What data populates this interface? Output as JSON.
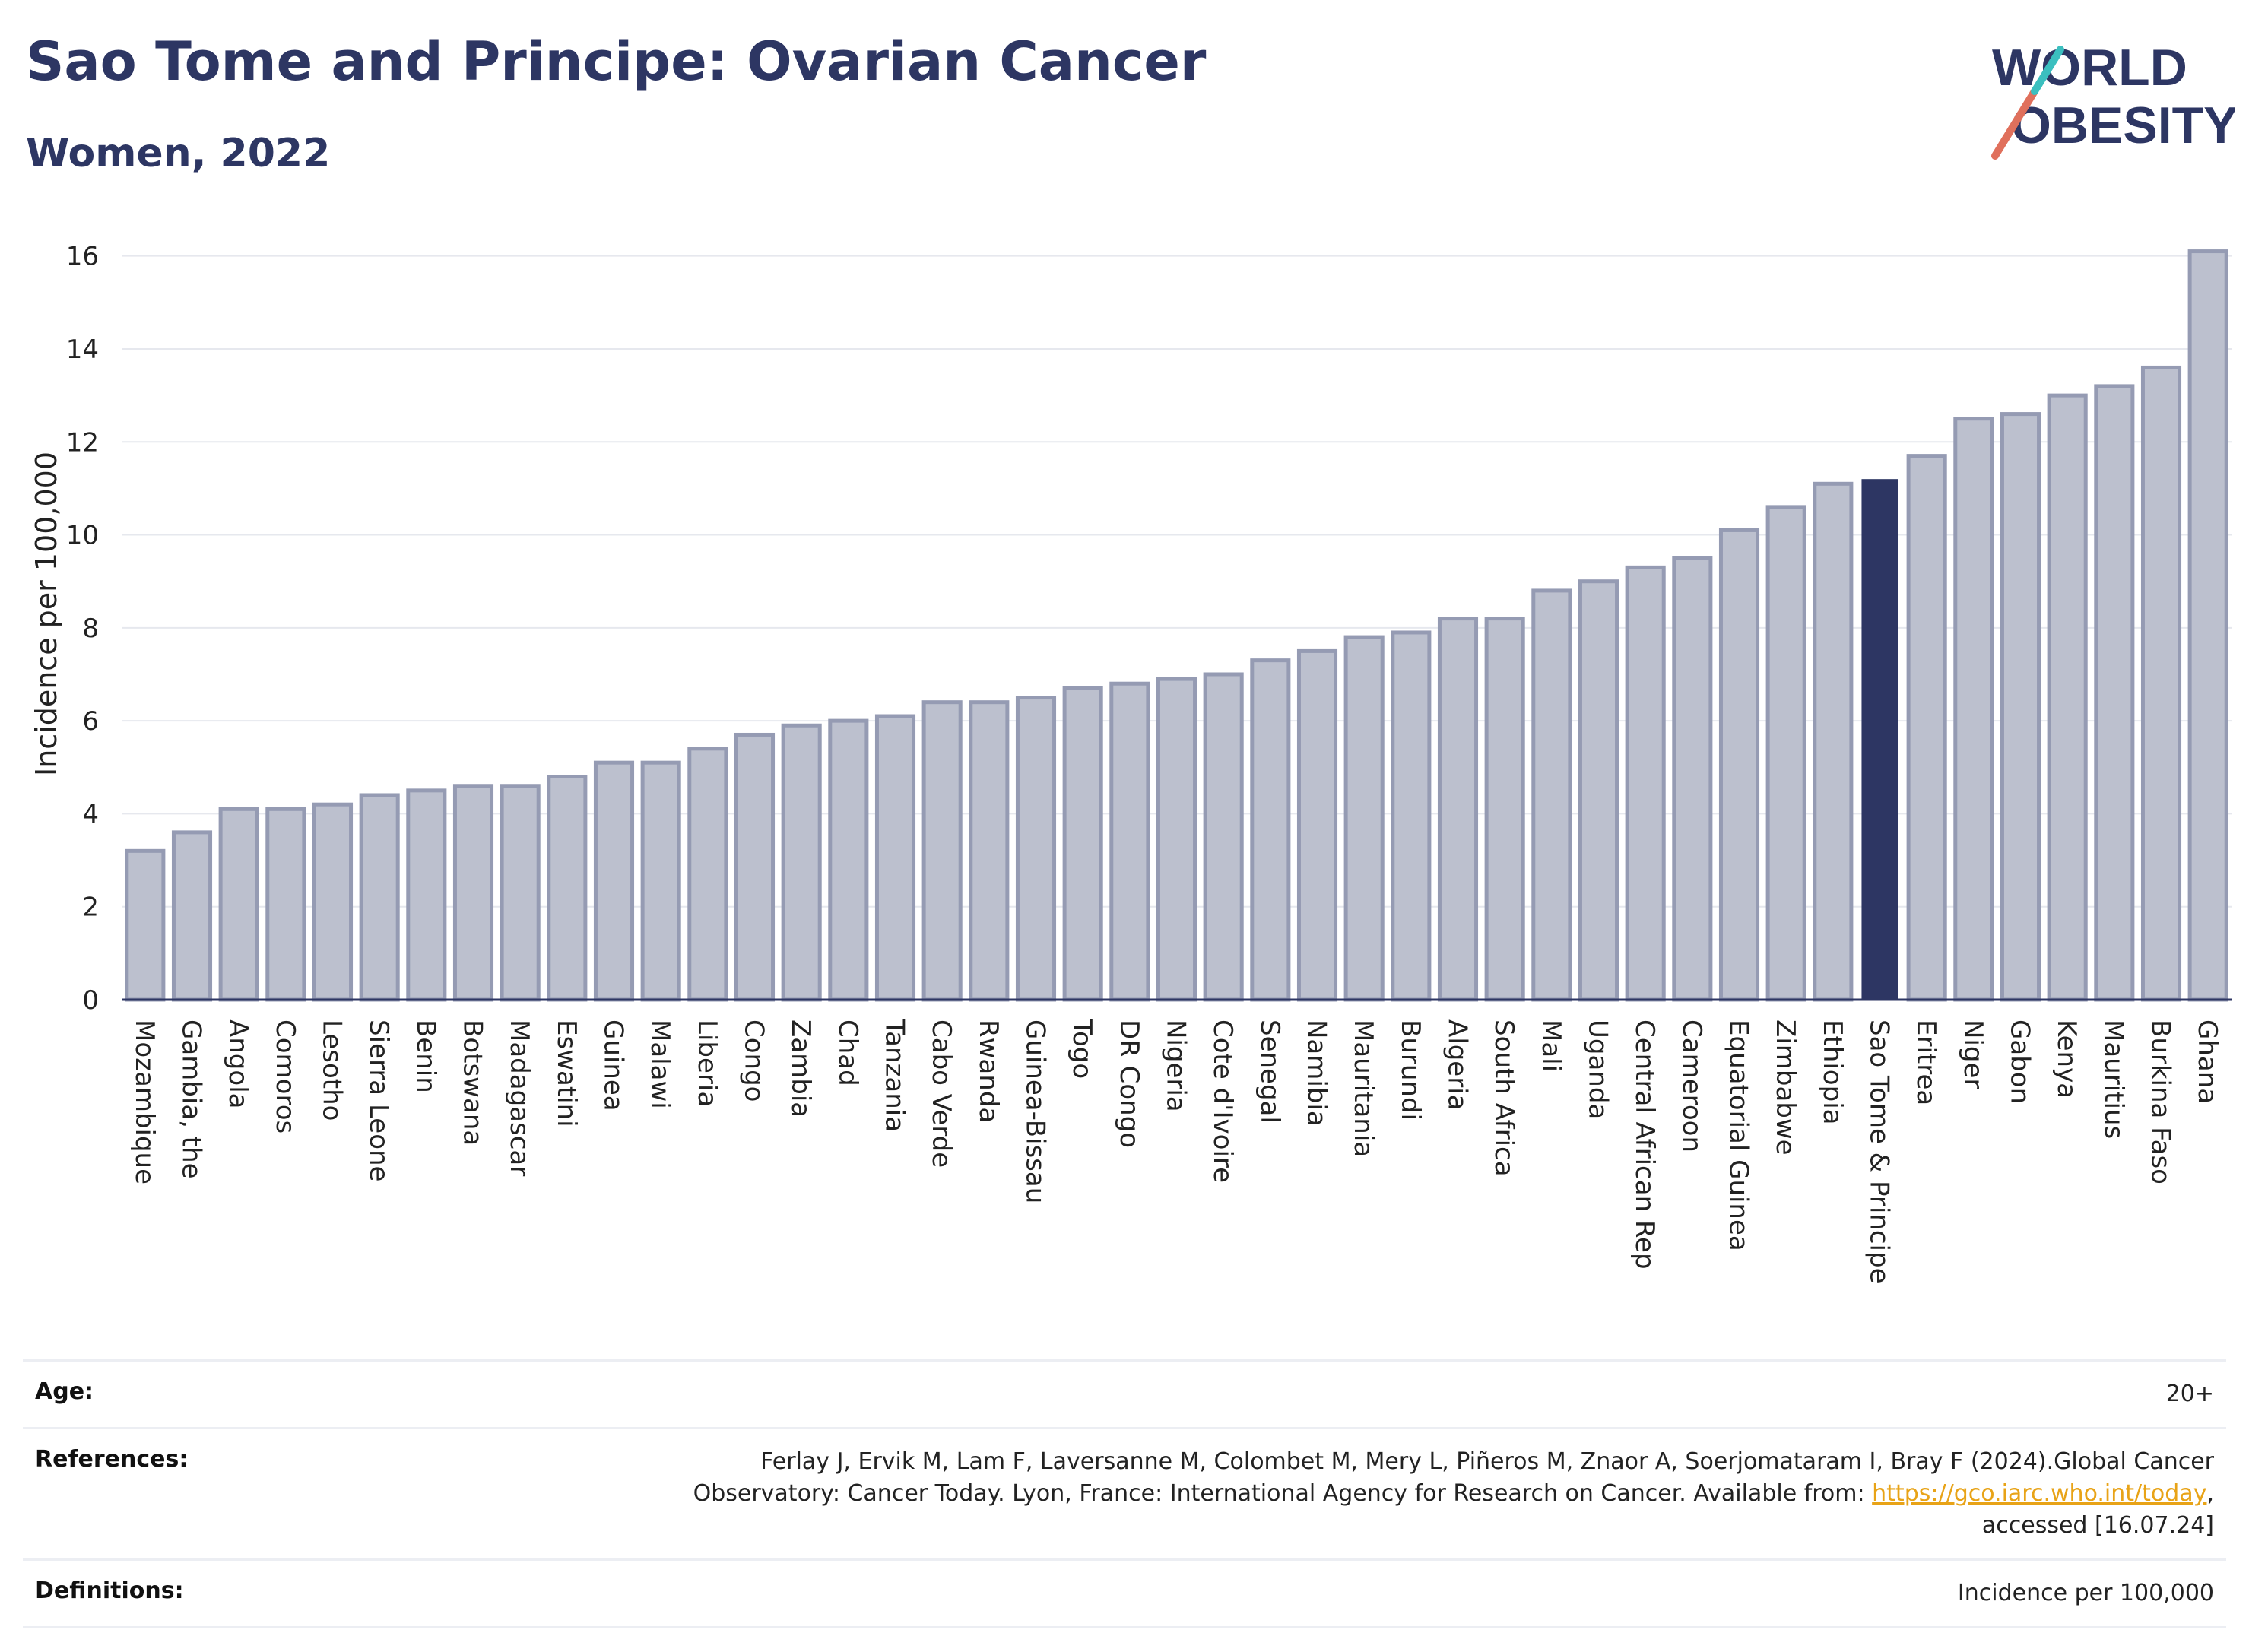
{
  "header": {
    "title": "Sao Tome and Principe: Ovarian Cancer",
    "subtitle": "Women, 2022"
  },
  "logo": {
    "line1": "WORLD",
    "line2": "OBESITY"
  },
  "chart_data": {
    "type": "bar",
    "ylabel": "Incidence per 100,000",
    "xlabel": "",
    "ylim": [
      0,
      16.6
    ],
    "yticks": [
      0,
      2,
      4,
      6,
      8,
      10,
      12,
      14,
      16
    ],
    "grid": true,
    "highlight": "Sao Tome & Principe",
    "colors": {
      "bar": "#bcc0ce",
      "bar_edge": "#959bb3",
      "highlight": "#2d3663"
    },
    "categories": [
      "Mozambique",
      "Gambia, the",
      "Angola",
      "Comoros",
      "Lesotho",
      "Sierra Leone",
      "Benin",
      "Botswana",
      "Madagascar",
      "Eswatini",
      "Guinea",
      "Malawi",
      "Liberia",
      "Congo",
      "Zambia",
      "Chad",
      "Tanzania",
      "Cabo Verde",
      "Rwanda",
      "Guinea-Bissau",
      "Togo",
      "DR Congo",
      "Nigeria",
      "Cote d'Ivoire",
      "Senegal",
      "Namibia",
      "Mauritania",
      "Burundi",
      "Algeria",
      "South Africa",
      "Mali",
      "Uganda",
      "Central African Rep",
      "Cameroon",
      "Equatorial Guinea",
      "Zimbabwe",
      "Ethiopia",
      "Sao Tome & Principe",
      "Eritrea",
      "Niger",
      "Gabon",
      "Kenya",
      "Mauritius",
      "Burkina Faso",
      "Ghana"
    ],
    "values": [
      3.2,
      3.6,
      4.1,
      4.1,
      4.2,
      4.4,
      4.5,
      4.6,
      4.6,
      4.8,
      5.1,
      5.1,
      5.4,
      5.7,
      5.9,
      6.0,
      6.1,
      6.4,
      6.4,
      6.5,
      6.7,
      6.8,
      6.9,
      7.0,
      7.3,
      7.5,
      7.8,
      7.9,
      8.2,
      8.2,
      8.8,
      9.0,
      9.3,
      9.5,
      10.1,
      10.6,
      11.1,
      11.2,
      11.7,
      12.5,
      12.6,
      13.0,
      13.2,
      13.6,
      16.1
    ]
  },
  "info": {
    "age_label": "Age:",
    "age_value": "20+",
    "references_label": "References:",
    "references_line1": "Ferlay J, Ervik M, Lam F, Laversanne M, Colombet M, Mery L, Piñeros M, Znaor A, Soerjomataram I, Bray F (2024).Global Cancer",
    "references_line2_pre": "Observatory: Cancer Today. Lyon, France: International Agency for Research on Cancer. Available from: ",
    "references_link": "https://gco.iarc.who.int/today",
    "references_line2_post": ",",
    "references_line3": "accessed [16.07.24]",
    "definitions_label": "Definitions:",
    "definitions_value": "Incidence per 100,000"
  }
}
